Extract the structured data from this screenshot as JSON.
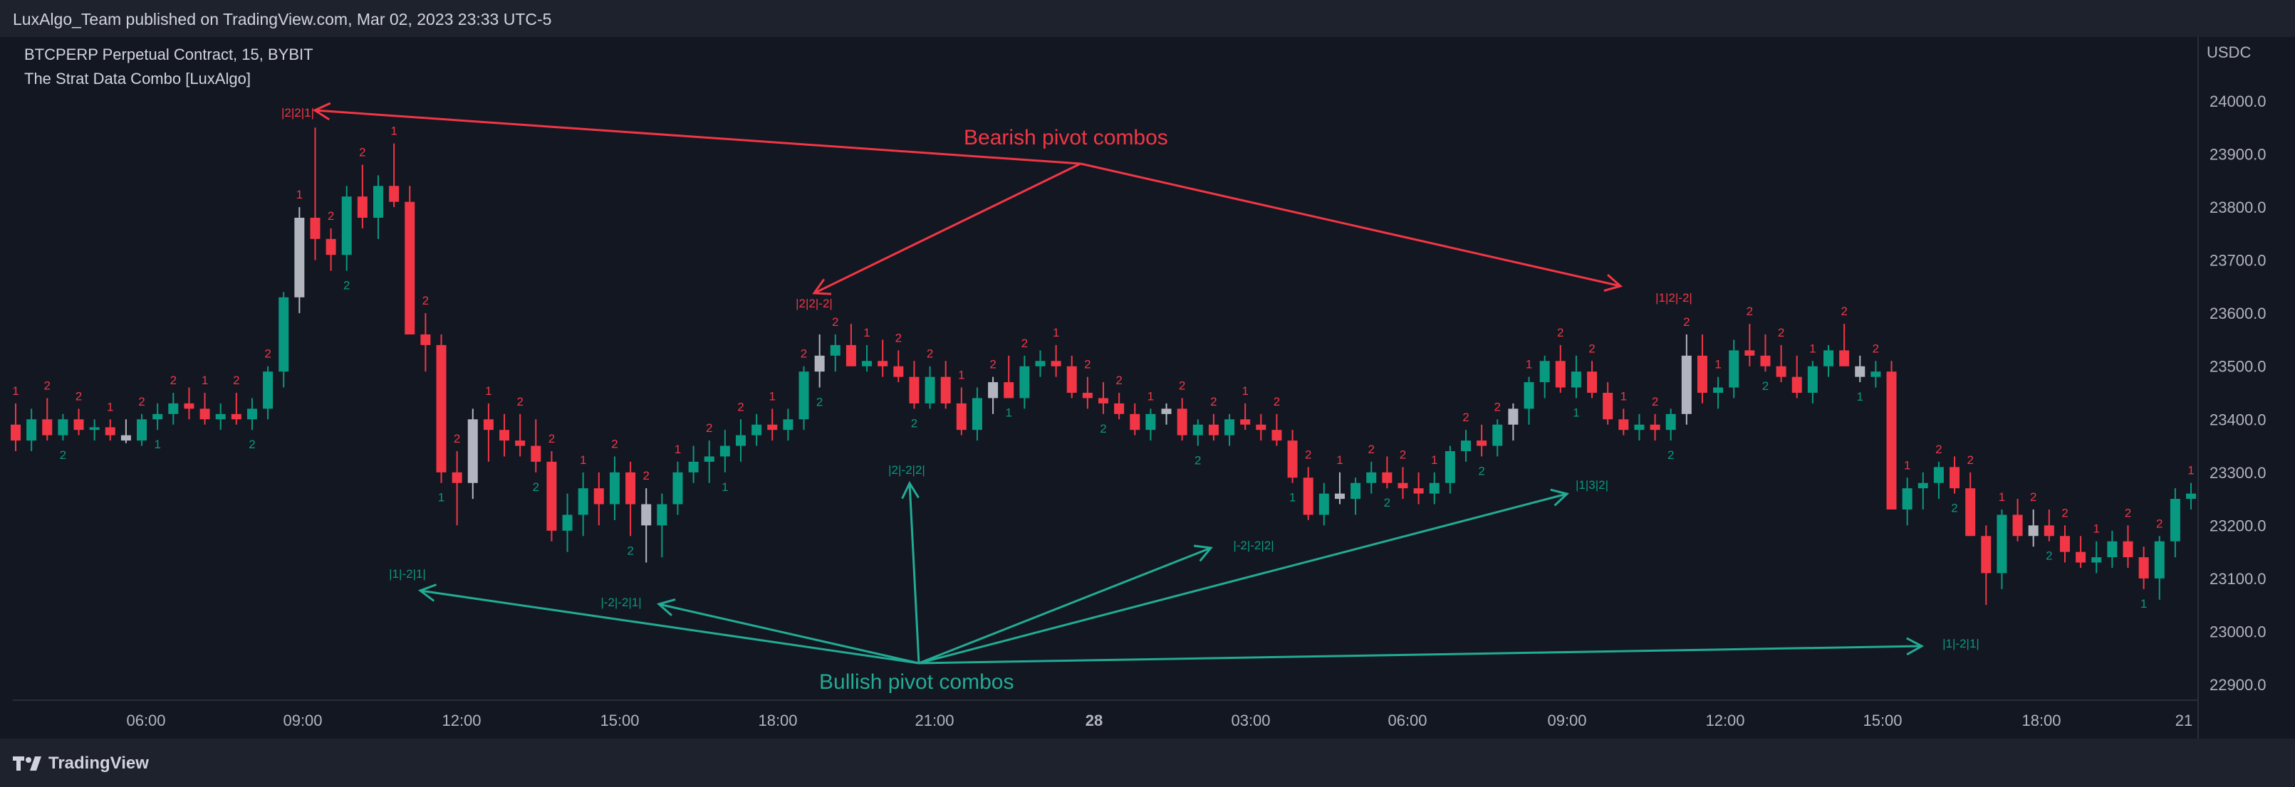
{
  "header": {
    "publisher": "LuxAlgo_Team published on TradingView.com, Mar 02, 2023 23:33 UTC-5"
  },
  "legend": {
    "symbol": "BTCPERP Perpetual Contract, 15, BYBIT",
    "indicator": "The Strat Data Combo [LuxAlgo]"
  },
  "price_axis": {
    "currency": "USDC",
    "labels": [
      "24000.0",
      "23900.0",
      "23800.0",
      "23700.0",
      "23600.0",
      "23500.0",
      "23400.0",
      "23300.0",
      "23200.0",
      "23100.0",
      "23000.0",
      "22900.0"
    ]
  },
  "time_axis": {
    "labels": [
      "06:00",
      "09:00",
      "12:00",
      "15:00",
      "18:00",
      "21:00",
      "28",
      "03:00",
      "06:00",
      "09:00",
      "12:00",
      "15:00",
      "18:00",
      "21"
    ]
  },
  "annotations": {
    "bearish": "Bearish pivot combos",
    "bullish": "Bullish pivot combos",
    "bear_combos": [
      "|2|2|1|",
      "|2|2|-2|",
      "|1|2|-2|"
    ],
    "bull_combos": [
      "|1|-2|1|",
      "|-2|-2|1|",
      "|2|-2|2|",
      "|-2|-2|2|",
      "|1|3|2|",
      "|1|-2|1|"
    ]
  },
  "colors": {
    "bull": "#089981",
    "bear": "#f23645",
    "neutral": "#b2b5be",
    "background": "#131722",
    "panel": "#1e222d"
  },
  "footer": {
    "brand": "TradingView"
  },
  "chart_data": {
    "type": "candlestick",
    "symbol": "BTCPERP",
    "timeframe": "15",
    "exchange": "BYBIT",
    "ylim": [
      22850,
      24100
    ],
    "price_ticks": [
      24000,
      23900,
      23800,
      23700,
      23600,
      23500,
      23400,
      23300,
      23200,
      23100,
      23000,
      22900
    ],
    "points": [
      [
        23390,
        23430,
        23340,
        23360
      ],
      [
        23360,
        23420,
        23340,
        23400
      ],
      [
        23400,
        23440,
        23360,
        23370
      ],
      [
        23370,
        23410,
        23360,
        23400
      ],
      [
        23400,
        23420,
        23370,
        23380
      ],
      [
        23380,
        23400,
        23360,
        23385
      ],
      [
        23385,
        23400,
        23360,
        23370
      ],
      [
        23370,
        23400,
        23355,
        23360
      ],
      [
        23360,
        23410,
        23350,
        23400
      ],
      [
        23400,
        23430,
        23380,
        23410
      ],
      [
        23410,
        23450,
        23390,
        23430
      ],
      [
        23430,
        23460,
        23400,
        23420
      ],
      [
        23420,
        23450,
        23390,
        23400
      ],
      [
        23400,
        23430,
        23380,
        23410
      ],
      [
        23410,
        23450,
        23390,
        23400
      ],
      [
        23400,
        23440,
        23380,
        23420
      ],
      [
        23420,
        23500,
        23400,
        23490
      ],
      [
        23490,
        23640,
        23460,
        23630
      ],
      [
        23630,
        23800,
        23600,
        23780
      ],
      [
        23780,
        23950,
        23700,
        23740
      ],
      [
        23740,
        23760,
        23680,
        23710
      ],
      [
        23710,
        23840,
        23680,
        23820
      ],
      [
        23820,
        23880,
        23760,
        23780
      ],
      [
        23780,
        23860,
        23740,
        23840
      ],
      [
        23840,
        23920,
        23800,
        23810
      ],
      [
        23810,
        23840,
        23560,
        23560
      ],
      [
        23560,
        23600,
        23490,
        23540
      ],
      [
        23540,
        23560,
        23280,
        23300
      ],
      [
        23300,
        23340,
        23200,
        23280
      ],
      [
        23280,
        23420,
        23250,
        23400
      ],
      [
        23400,
        23430,
        23320,
        23380
      ],
      [
        23380,
        23410,
        23330,
        23360
      ],
      [
        23360,
        23410,
        23330,
        23350
      ],
      [
        23350,
        23400,
        23300,
        23320
      ],
      [
        23320,
        23340,
        23170,
        23190
      ],
      [
        23190,
        23260,
        23150,
        23220
      ],
      [
        23220,
        23300,
        23180,
        23270
      ],
      [
        23270,
        23300,
        23200,
        23240
      ],
      [
        23240,
        23330,
        23210,
        23300
      ],
      [
        23300,
        23320,
        23180,
        23240
      ],
      [
        23240,
        23270,
        23130,
        23200
      ],
      [
        23200,
        23260,
        23140,
        23240
      ],
      [
        23240,
        23320,
        23220,
        23300
      ],
      [
        23300,
        23350,
        23280,
        23320
      ],
      [
        23320,
        23360,
        23280,
        23330
      ],
      [
        23330,
        23380,
        23300,
        23350
      ],
      [
        23350,
        23400,
        23320,
        23370
      ],
      [
        23370,
        23410,
        23350,
        23390
      ],
      [
        23390,
        23420,
        23360,
        23380
      ],
      [
        23380,
        23420,
        23360,
        23400
      ],
      [
        23400,
        23500,
        23380,
        23490
      ],
      [
        23490,
        23560,
        23460,
        23520
      ],
      [
        23520,
        23560,
        23490,
        23540
      ],
      [
        23540,
        23580,
        23500,
        23500
      ],
      [
        23500,
        23540,
        23490,
        23510
      ],
      [
        23510,
        23550,
        23480,
        23500
      ],
      [
        23500,
        23530,
        23470,
        23480
      ],
      [
        23480,
        23510,
        23420,
        23430
      ],
      [
        23430,
        23500,
        23420,
        23480
      ],
      [
        23480,
        23510,
        23420,
        23430
      ],
      [
        23430,
        23460,
        23370,
        23380
      ],
      [
        23380,
        23460,
        23360,
        23440
      ],
      [
        23440,
        23480,
        23410,
        23470
      ],
      [
        23470,
        23520,
        23440,
        23440
      ],
      [
        23440,
        23520,
        23420,
        23500
      ],
      [
        23500,
        23530,
        23480,
        23510
      ],
      [
        23510,
        23540,
        23480,
        23500
      ],
      [
        23500,
        23520,
        23440,
        23450
      ],
      [
        23450,
        23480,
        23420,
        23440
      ],
      [
        23440,
        23470,
        23410,
        23430
      ],
      [
        23430,
        23450,
        23400,
        23410
      ],
      [
        23410,
        23430,
        23370,
        23380
      ],
      [
        23380,
        23420,
        23360,
        23410
      ],
      [
        23410,
        23430,
        23390,
        23420
      ],
      [
        23420,
        23440,
        23360,
        23370
      ],
      [
        23370,
        23400,
        23350,
        23390
      ],
      [
        23390,
        23410,
        23360,
        23370
      ],
      [
        23370,
        23410,
        23350,
        23400
      ],
      [
        23400,
        23430,
        23380,
        23390
      ],
      [
        23390,
        23410,
        23360,
        23380
      ],
      [
        23380,
        23410,
        23350,
        23360
      ],
      [
        23360,
        23380,
        23280,
        23290
      ],
      [
        23290,
        23310,
        23210,
        23220
      ],
      [
        23220,
        23280,
        23200,
        23260
      ],
      [
        23260,
        23300,
        23240,
        23250
      ],
      [
        23250,
        23290,
        23220,
        23280
      ],
      [
        23280,
        23320,
        23260,
        23300
      ],
      [
        23300,
        23330,
        23270,
        23280
      ],
      [
        23280,
        23310,
        23250,
        23270
      ],
      [
        23270,
        23300,
        23240,
        23260
      ],
      [
        23260,
        23300,
        23240,
        23280
      ],
      [
        23280,
        23350,
        23260,
        23340
      ],
      [
        23340,
        23380,
        23320,
        23360
      ],
      [
        23360,
        23390,
        23330,
        23350
      ],
      [
        23350,
        23400,
        23330,
        23390
      ],
      [
        23390,
        23430,
        23360,
        23420
      ],
      [
        23420,
        23480,
        23390,
        23470
      ],
      [
        23470,
        23520,
        23440,
        23510
      ],
      [
        23510,
        23540,
        23450,
        23460
      ],
      [
        23460,
        23520,
        23440,
        23490
      ],
      [
        23490,
        23510,
        23440,
        23450
      ],
      [
        23450,
        23470,
        23390,
        23400
      ],
      [
        23400,
        23420,
        23370,
        23380
      ],
      [
        23380,
        23410,
        23360,
        23390
      ],
      [
        23390,
        23410,
        23360,
        23380
      ],
      [
        23380,
        23420,
        23360,
        23410
      ],
      [
        23410,
        23560,
        23390,
        23520
      ],
      [
        23520,
        23560,
        23430,
        23450
      ],
      [
        23450,
        23480,
        23420,
        23460
      ],
      [
        23460,
        23550,
        23440,
        23530
      ],
      [
        23530,
        23580,
        23500,
        23520
      ],
      [
        23520,
        23560,
        23490,
        23500
      ],
      [
        23500,
        23540,
        23470,
        23480
      ],
      [
        23480,
        23520,
        23440,
        23450
      ],
      [
        23450,
        23510,
        23430,
        23500
      ],
      [
        23500,
        23540,
        23480,
        23530
      ],
      [
        23530,
        23580,
        23500,
        23500
      ],
      [
        23500,
        23520,
        23470,
        23480
      ],
      [
        23480,
        23510,
        23460,
        23490
      ],
      [
        23490,
        23510,
        23420,
        23230
      ],
      [
        23230,
        23290,
        23200,
        23270
      ],
      [
        23270,
        23300,
        23230,
        23280
      ],
      [
        23280,
        23320,
        23250,
        23310
      ],
      [
        23310,
        23330,
        23260,
        23270
      ],
      [
        23270,
        23300,
        23180,
        23180
      ],
      [
        23180,
        23200,
        23050,
        23110
      ],
      [
        23110,
        23230,
        23080,
        23220
      ],
      [
        23220,
        23250,
        23170,
        23180
      ],
      [
        23180,
        23230,
        23160,
        23200
      ],
      [
        23200,
        23230,
        23170,
        23180
      ],
      [
        23180,
        23200,
        23130,
        23150
      ],
      [
        23150,
        23180,
        23120,
        23130
      ],
      [
        23130,
        23170,
        23110,
        23140
      ],
      [
        23140,
        23190,
        23120,
        23170
      ],
      [
        23170,
        23200,
        23120,
        23140
      ],
      [
        23140,
        23160,
        23080,
        23100
      ],
      [
        23100,
        23180,
        23060,
        23170
      ],
      [
        23170,
        23270,
        23140,
        23250
      ],
      [
        23250,
        23280,
        23230,
        23260
      ]
    ]
  }
}
